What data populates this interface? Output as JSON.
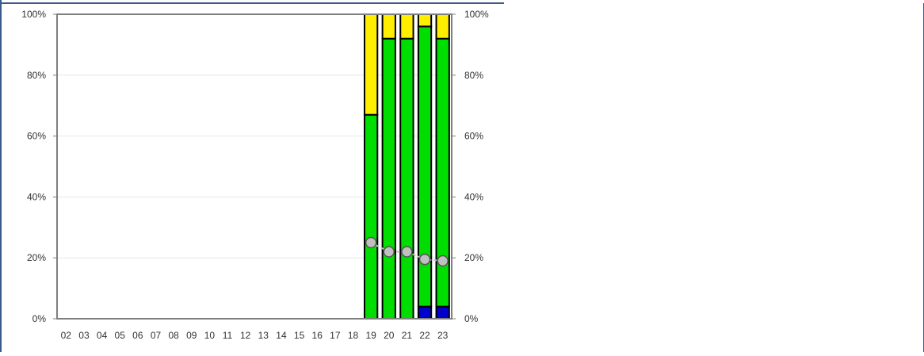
{
  "chart_data": {
    "type": "bar",
    "stacked": true,
    "normalized_percent": true,
    "categories": [
      "02",
      "03",
      "04",
      "05",
      "06",
      "07",
      "08",
      "09",
      "10",
      "11",
      "12",
      "13",
      "14",
      "15",
      "16",
      "17",
      "18",
      "19",
      "20",
      "21",
      "22",
      "23"
    ],
    "series": [
      {
        "color": "#0000cc",
        "values": [
          null,
          null,
          null,
          null,
          null,
          null,
          null,
          null,
          null,
          null,
          null,
          null,
          null,
          null,
          null,
          null,
          null,
          0,
          0,
          0,
          4,
          4
        ]
      },
      {
        "color": "#00dd00",
        "values": [
          null,
          null,
          null,
          null,
          null,
          null,
          null,
          null,
          null,
          null,
          null,
          null,
          null,
          null,
          null,
          null,
          null,
          67,
          92,
          92,
          92,
          88
        ]
      },
      {
        "color": "#ffee00",
        "values": [
          null,
          null,
          null,
          null,
          null,
          null,
          null,
          null,
          null,
          null,
          null,
          null,
          null,
          null,
          null,
          null,
          null,
          33,
          8,
          8,
          4,
          8
        ]
      }
    ],
    "line_series": {
      "color": "#c0c0c0",
      "values": [
        null,
        null,
        null,
        null,
        null,
        null,
        null,
        null,
        null,
        null,
        null,
        null,
        null,
        null,
        null,
        null,
        null,
        25,
        22,
        22,
        19.5,
        19
      ]
    },
    "y_ticks": [
      "0%",
      "20%",
      "40%",
      "60%",
      "80%",
      "100%"
    ],
    "ylim": [
      0,
      100
    ],
    "secondary_y_ticks": [
      "0%",
      "20%",
      "40%",
      "60%",
      "80%",
      "100%"
    ],
    "grid": "horizontal",
    "legend": "none"
  },
  "colors": {
    "frame_border": "#3a5a8c",
    "plot_border": "#7f7f7f",
    "grid": "#e6e6e6"
  }
}
